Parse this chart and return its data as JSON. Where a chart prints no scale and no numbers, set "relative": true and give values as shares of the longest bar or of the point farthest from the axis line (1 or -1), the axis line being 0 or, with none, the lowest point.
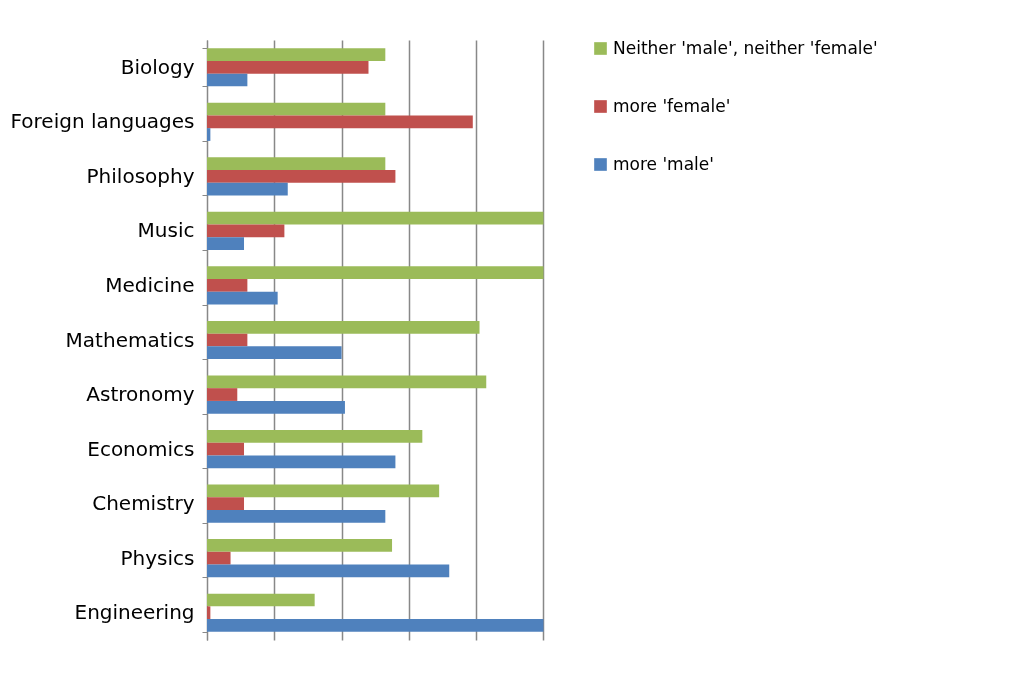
{
  "chart_data": {
    "type": "bar",
    "orientation": "horizontal",
    "relative": true,
    "grid": "x",
    "legend": "right",
    "categories": [
      "Biology",
      "Foreign languages",
      "Philosophy",
      "Music",
      "Medicine",
      "Mathematics",
      "Astronomy",
      "Economics",
      "Chemistry",
      "Physics",
      "Engineering"
    ],
    "series": [
      {
        "name": "Neither 'male', neither 'female'",
        "color": "#9bbb59",
        "values": [
          0.53,
          0.53,
          0.53,
          1,
          1,
          0.81,
          0.83,
          0.64,
          0.69,
          0.55,
          0.32
        ]
      },
      {
        "name": "more 'female'",
        "color": "#c0504d",
        "values": [
          0.48,
          0.79,
          0.56,
          0.23,
          0.12,
          0.12,
          0.09,
          0.11,
          0.11,
          0.07,
          0.01
        ]
      },
      {
        "name": "more 'male'",
        "color": "#4f81bd",
        "values": [
          0.12,
          0.01,
          0.24,
          0.11,
          0.21,
          0.4,
          0.41,
          0.56,
          0.53,
          0.72,
          1
        ]
      }
    ]
  }
}
